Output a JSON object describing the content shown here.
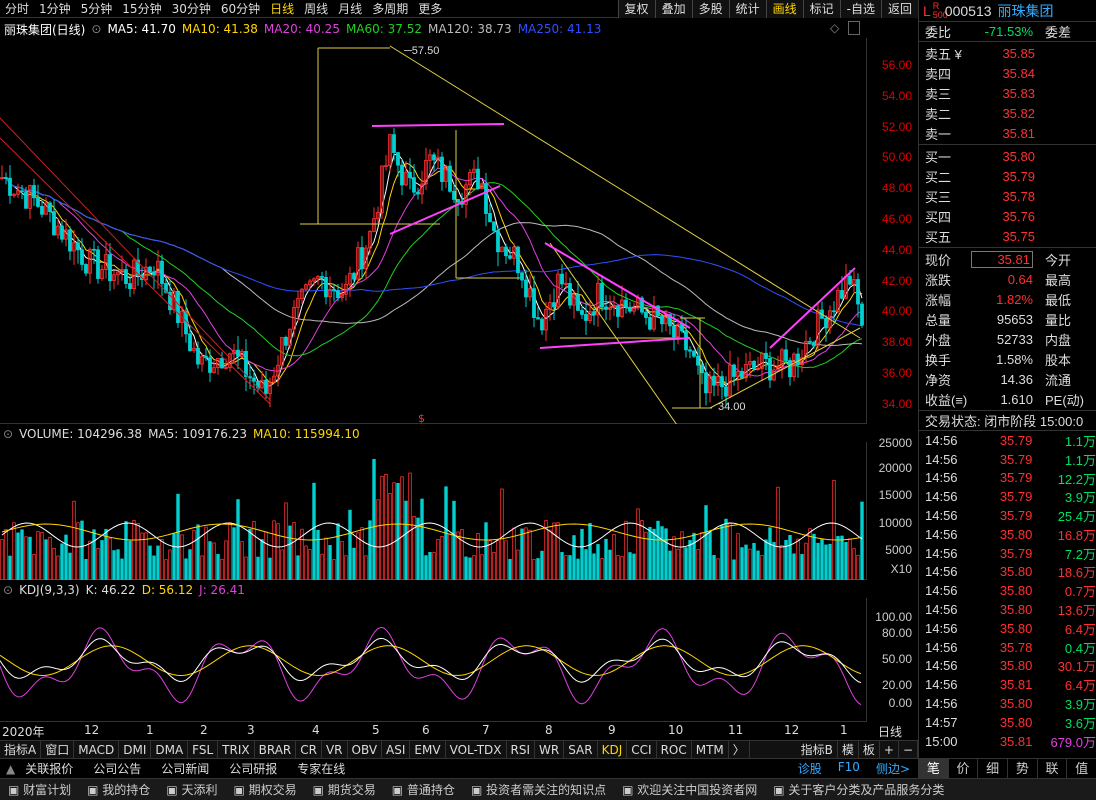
{
  "periods": [
    "分时",
    "1分钟",
    "5分钟",
    "15分钟",
    "30分钟",
    "60分钟",
    "日线",
    "周线",
    "月线",
    "多周期",
    "更多"
  ],
  "active_period": "日线",
  "toolbar": [
    "复权",
    "叠加",
    "多股",
    "统计",
    "画线",
    "标记",
    "-自选",
    "返回"
  ],
  "main_legend": {
    "name": "丽珠集团(日线)",
    "ma5": "MA5: 41.70",
    "ma10": "MA10: 41.38",
    "ma20": "MA20: 40.25",
    "ma60": "MA60: 37.52",
    "ma120": "MA120: 38.73",
    "ma250": "MA250: 41.13"
  },
  "price_axis": [
    "56.00",
    "54.00",
    "52.00",
    "50.00",
    "48.00",
    "46.00",
    "44.00",
    "42.00",
    "40.00",
    "38.00",
    "36.00",
    "34.00"
  ],
  "annotations": {
    "high": "57.50",
    "low": "34.00",
    "marker": "$"
  },
  "vol_legend": {
    "vol": "VOLUME: 104296.38",
    "ma5": "MA5: 109176.23",
    "ma10": "MA10: 115994.10"
  },
  "vol_axis": [
    "25000",
    "20000",
    "15000",
    "10000",
    "5000",
    "X10"
  ],
  "kdj_legend": {
    "name": "KDJ(9,3,3)",
    "k": "K: 46.22",
    "d": "D: 56.12",
    "j": "J: 26.41"
  },
  "kdj_axis": [
    "100.00",
    "80.00",
    "50.00",
    "20.00",
    "0.00"
  ],
  "x_labels": [
    "2020年",
    "12",
    "1",
    "2",
    "3",
    "4",
    "5",
    "6",
    "7",
    "8",
    "9",
    "10",
    "11",
    "12",
    "1"
  ],
  "x_period": "日线",
  "indicators": [
    "指标A",
    "窗口",
    "MACD",
    "DMI",
    "DMA",
    "FSL",
    "TRIX",
    "BRAR",
    "CR",
    "VR",
    "OBV",
    "ASI",
    "EMV",
    "VOL-TDX",
    "RSI",
    "WR",
    "SAR",
    "KDJ",
    "CCI",
    "ROC",
    "MTM",
    "〉"
  ],
  "active_indicator": "KDJ",
  "indicator_right": [
    "指标B",
    "模",
    "板",
    "+",
    "−"
  ],
  "news": [
    "关联报价",
    "公司公告",
    "公司新闻",
    "公司研报",
    "专家在线"
  ],
  "news_right": [
    "诊股",
    "F10",
    "侧边>"
  ],
  "status": [
    "财富计划",
    "我的持仓",
    "天添利",
    "期权交易",
    "期货交易",
    "普通持仓",
    "投资者需关注的知识点",
    "欢迎关注中国投资者网",
    "关于客户分类及产品服务分类"
  ],
  "quote": {
    "l": "L",
    "code": "000513",
    "name": "丽珠集团",
    "weibi_label": "委比",
    "weibi": "-71.53%",
    "weicha_label": "委差",
    "asks": [
      {
        "l": "卖五 ¥",
        "p": "35.85"
      },
      {
        "l": "卖四",
        "p": "35.84"
      },
      {
        "l": "卖三",
        "p": "35.83"
      },
      {
        "l": "卖二",
        "p": "35.82"
      },
      {
        "l": "卖一",
        "p": "35.81"
      }
    ],
    "bids": [
      {
        "l": "买一",
        "p": "35.80"
      },
      {
        "l": "买二",
        "p": "35.79"
      },
      {
        "l": "买三",
        "p": "35.78"
      },
      {
        "l": "买四",
        "p": "35.76"
      },
      {
        "l": "买五",
        "p": "35.75"
      }
    ],
    "stats": [
      {
        "a": "现价",
        "b": "35.81",
        "c": "今开"
      },
      {
        "a": "涨跌",
        "b": "0.64",
        "c": "最高"
      },
      {
        "a": "涨幅",
        "b": "1.82%",
        "c": "最低"
      },
      {
        "a": "总量",
        "b": "95653",
        "c": "量比"
      },
      {
        "a": "外盘",
        "b": "52733",
        "c": "内盘"
      },
      {
        "a": "换手",
        "b": "1.58%",
        "c": "股本"
      },
      {
        "a": "净资",
        "b": "14.36",
        "c": "流通"
      },
      {
        "a": "收益(≡)",
        "b": "1.610",
        "c": "PE(动)"
      }
    ],
    "trade_state": "交易状态: 闭市阶段 15:00:0",
    "ticks": [
      {
        "t": "14:56",
        "p": "35.79",
        "v": "1.1万",
        "c": "g"
      },
      {
        "t": "14:56",
        "p": "35.79",
        "v": "1.1万",
        "c": "g"
      },
      {
        "t": "14:56",
        "p": "35.79",
        "v": "12.2万",
        "c": "g"
      },
      {
        "t": "14:56",
        "p": "35.79",
        "v": "3.9万",
        "c": "g"
      },
      {
        "t": "14:56",
        "p": "35.79",
        "v": "25.4万",
        "c": "g"
      },
      {
        "t": "14:56",
        "p": "35.80",
        "v": "16.8万",
        "c": "r"
      },
      {
        "t": "14:56",
        "p": "35.79",
        "v": "7.2万",
        "c": "g"
      },
      {
        "t": "14:56",
        "p": "35.80",
        "v": "18.6万",
        "c": "r"
      },
      {
        "t": "14:56",
        "p": "35.80",
        "v": "0.7万",
        "c": "r"
      },
      {
        "t": "14:56",
        "p": "35.80",
        "v": "13.6万",
        "c": "r"
      },
      {
        "t": "14:56",
        "p": "35.80",
        "v": "6.4万",
        "c": "r"
      },
      {
        "t": "14:56",
        "p": "35.78",
        "v": "0.4万",
        "c": "g"
      },
      {
        "t": "14:56",
        "p": "35.80",
        "v": "30.1万",
        "c": "r"
      },
      {
        "t": "14:56",
        "p": "35.81",
        "v": "6.4万",
        "c": "r"
      },
      {
        "t": "14:56",
        "p": "35.80",
        "v": "3.9万",
        "c": "g"
      },
      {
        "t": "14:57",
        "p": "35.80",
        "v": "3.6万",
        "c": "g"
      },
      {
        "t": "15:00",
        "p": "35.81",
        "v": "679.0万",
        "c": "m"
      }
    ],
    "tabs": [
      "笔",
      "价",
      "细",
      "势",
      "联",
      "值"
    ]
  }
}
